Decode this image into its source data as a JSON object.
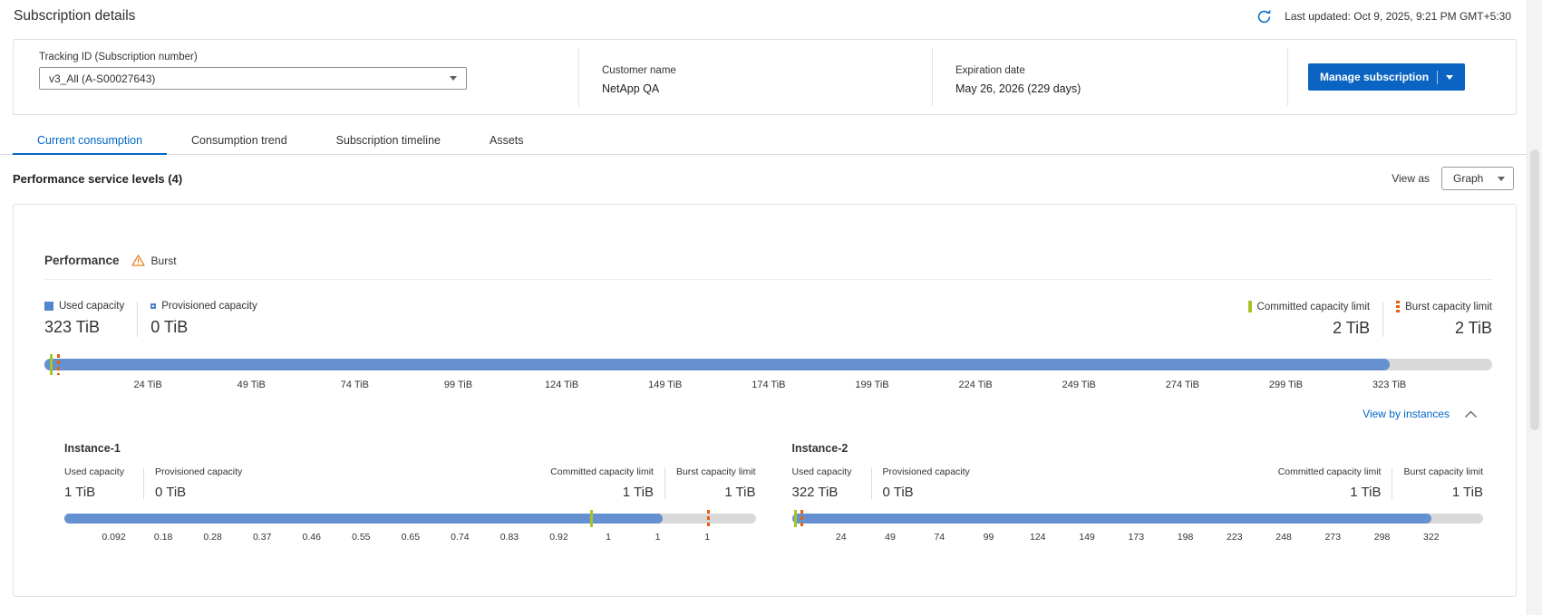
{
  "header": {
    "title": "Subscription details",
    "last_updated": "Last updated: Oct 9, 2025, 9:21 PM GMT+5:30"
  },
  "subscription_card": {
    "tracking_label": "Tracking ID (Subscription number)",
    "tracking_value": "v3_All (A-S00027643)",
    "customer_label": "Customer name",
    "customer_value": "NetApp QA",
    "expiration_label": "Expiration date",
    "expiration_value": "May 26, 2026 (229 days)",
    "manage_button": "Manage subscription"
  },
  "tabs": [
    {
      "label": "Current consumption",
      "active": true
    },
    {
      "label": "Consumption trend",
      "active": false
    },
    {
      "label": "Subscription timeline",
      "active": false
    },
    {
      "label": "Assets",
      "active": false
    }
  ],
  "section": {
    "title": "Performance service levels (4)",
    "view_as_label": "View as",
    "view_as_value": "Graph"
  },
  "capacity_labels": {
    "used": "Used capacity",
    "provisioned": "Provisioned capacity",
    "committed": "Committed capacity limit",
    "burst": "Burst capacity limit"
  },
  "performance_panel": {
    "title": "Performance",
    "badge": "Burst",
    "totals": {
      "used": "323 TiB",
      "provisioned": "0 TiB",
      "committed": "2 TiB",
      "burst": "2 TiB"
    },
    "view_by_instances": "View by instances",
    "bar": {
      "fill_pct": 92.9,
      "committed_pct": 0.35,
      "burst_pct": 0.85,
      "tick_end_pct": 92.9,
      "ticks": [
        "24 TiB",
        "49 TiB",
        "74 TiB",
        "99 TiB",
        "124 TiB",
        "149 TiB",
        "174 TiB",
        "199 TiB",
        "224 TiB",
        "249 TiB",
        "274 TiB",
        "299 TiB",
        "323 TiB"
      ]
    },
    "instances": [
      {
        "name": "Instance-1",
        "used": "1 TiB",
        "provisioned": "0 TiB",
        "committed": "1 TiB",
        "burst": "1 TiB",
        "bar": {
          "fill_pct": 86.5,
          "committed_pct": 76,
          "burst_pct": 93,
          "tick_end_pct": 93,
          "ticks": [
            "0.092",
            "0.18",
            "0.28",
            "0.37",
            "0.46",
            "0.55",
            "0.65",
            "0.74",
            "0.83",
            "0.92",
            "1",
            "1",
            "1"
          ]
        }
      },
      {
        "name": "Instance-2",
        "used": "322 TiB",
        "provisioned": "0 TiB",
        "committed": "1 TiB",
        "burst": "1 TiB",
        "bar": {
          "fill_pct": 92.5,
          "committed_pct": 0.3,
          "burst_pct": 1.2,
          "tick_end_pct": 92.5,
          "ticks": [
            "24",
            "49",
            "74",
            "99",
            "124",
            "149",
            "173",
            "198",
            "223",
            "248",
            "273",
            "298",
            "322"
          ]
        }
      }
    ]
  },
  "colors": {
    "accent_blue": "#0067c5",
    "button_blue": "#0b64c1",
    "bar_fill_blue": "#6691d1",
    "bar_track_gray": "#d9d9d9",
    "committed_green": "#a4c428",
    "burst_orange": "#ea5e0d",
    "warning_orange": "#e8790e"
  }
}
